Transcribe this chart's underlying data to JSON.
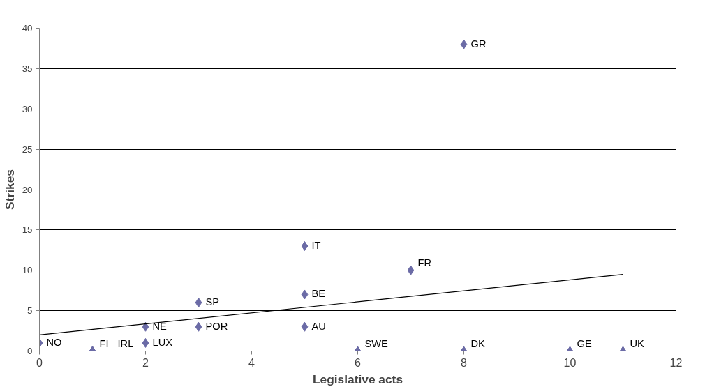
{
  "chart_data": {
    "type": "scatter",
    "xlabel": "Legislative acts",
    "ylabel": "Strikes",
    "x": [
      0,
      1,
      1,
      2,
      2,
      3,
      3,
      5,
      5,
      5,
      6,
      7,
      8,
      8,
      10,
      11
    ],
    "series": [
      {
        "color": "#6b6ba6",
        "values": [
          1,
          0,
          0,
          3,
          1,
          6,
          3,
          13,
          7,
          3,
          0,
          10,
          38,
          0,
          0,
          0
        ]
      },
      {
        "type": "line",
        "color": "#000000",
        "x": [
          0,
          11
        ],
        "values": [
          2,
          9.5
        ],
        "marker": "none"
      }
    ],
    "annotations": [
      {
        "text": "NO",
        "x": 0,
        "y": 1
      },
      {
        "text": "FI",
        "x": 1,
        "y": 0
      },
      {
        "text": "IRL",
        "x": 1,
        "y": 0
      },
      {
        "text": "NE",
        "x": 2,
        "y": 3
      },
      {
        "text": "LUX",
        "x": 2,
        "y": 1
      },
      {
        "text": "SP",
        "x": 3,
        "y": 6
      },
      {
        "text": "POR",
        "x": 3,
        "y": 3
      },
      {
        "text": "IT",
        "x": 5,
        "y": 13
      },
      {
        "text": "BE",
        "x": 5,
        "y": 7
      },
      {
        "text": "AU",
        "x": 5,
        "y": 3
      },
      {
        "text": "SWE",
        "x": 6,
        "y": 0
      },
      {
        "text": "FR",
        "x": 7,
        "y": 10
      },
      {
        "text": "GR",
        "x": 8,
        "y": 38
      },
      {
        "text": "DK",
        "x": 8,
        "y": 0
      },
      {
        "text": "GE",
        "x": 10,
        "y": 0
      },
      {
        "text": "UK",
        "x": 11,
        "y": 0
      }
    ],
    "marker": "diamond",
    "grid": "y",
    "xlim": [
      0,
      12
    ],
    "xticks": [
      0,
      2,
      4,
      6,
      8,
      10,
      12
    ],
    "ylim": [
      0,
      40
    ],
    "yticks": [
      0,
      5,
      10,
      15,
      20,
      25,
      30,
      35,
      40
    ]
  }
}
